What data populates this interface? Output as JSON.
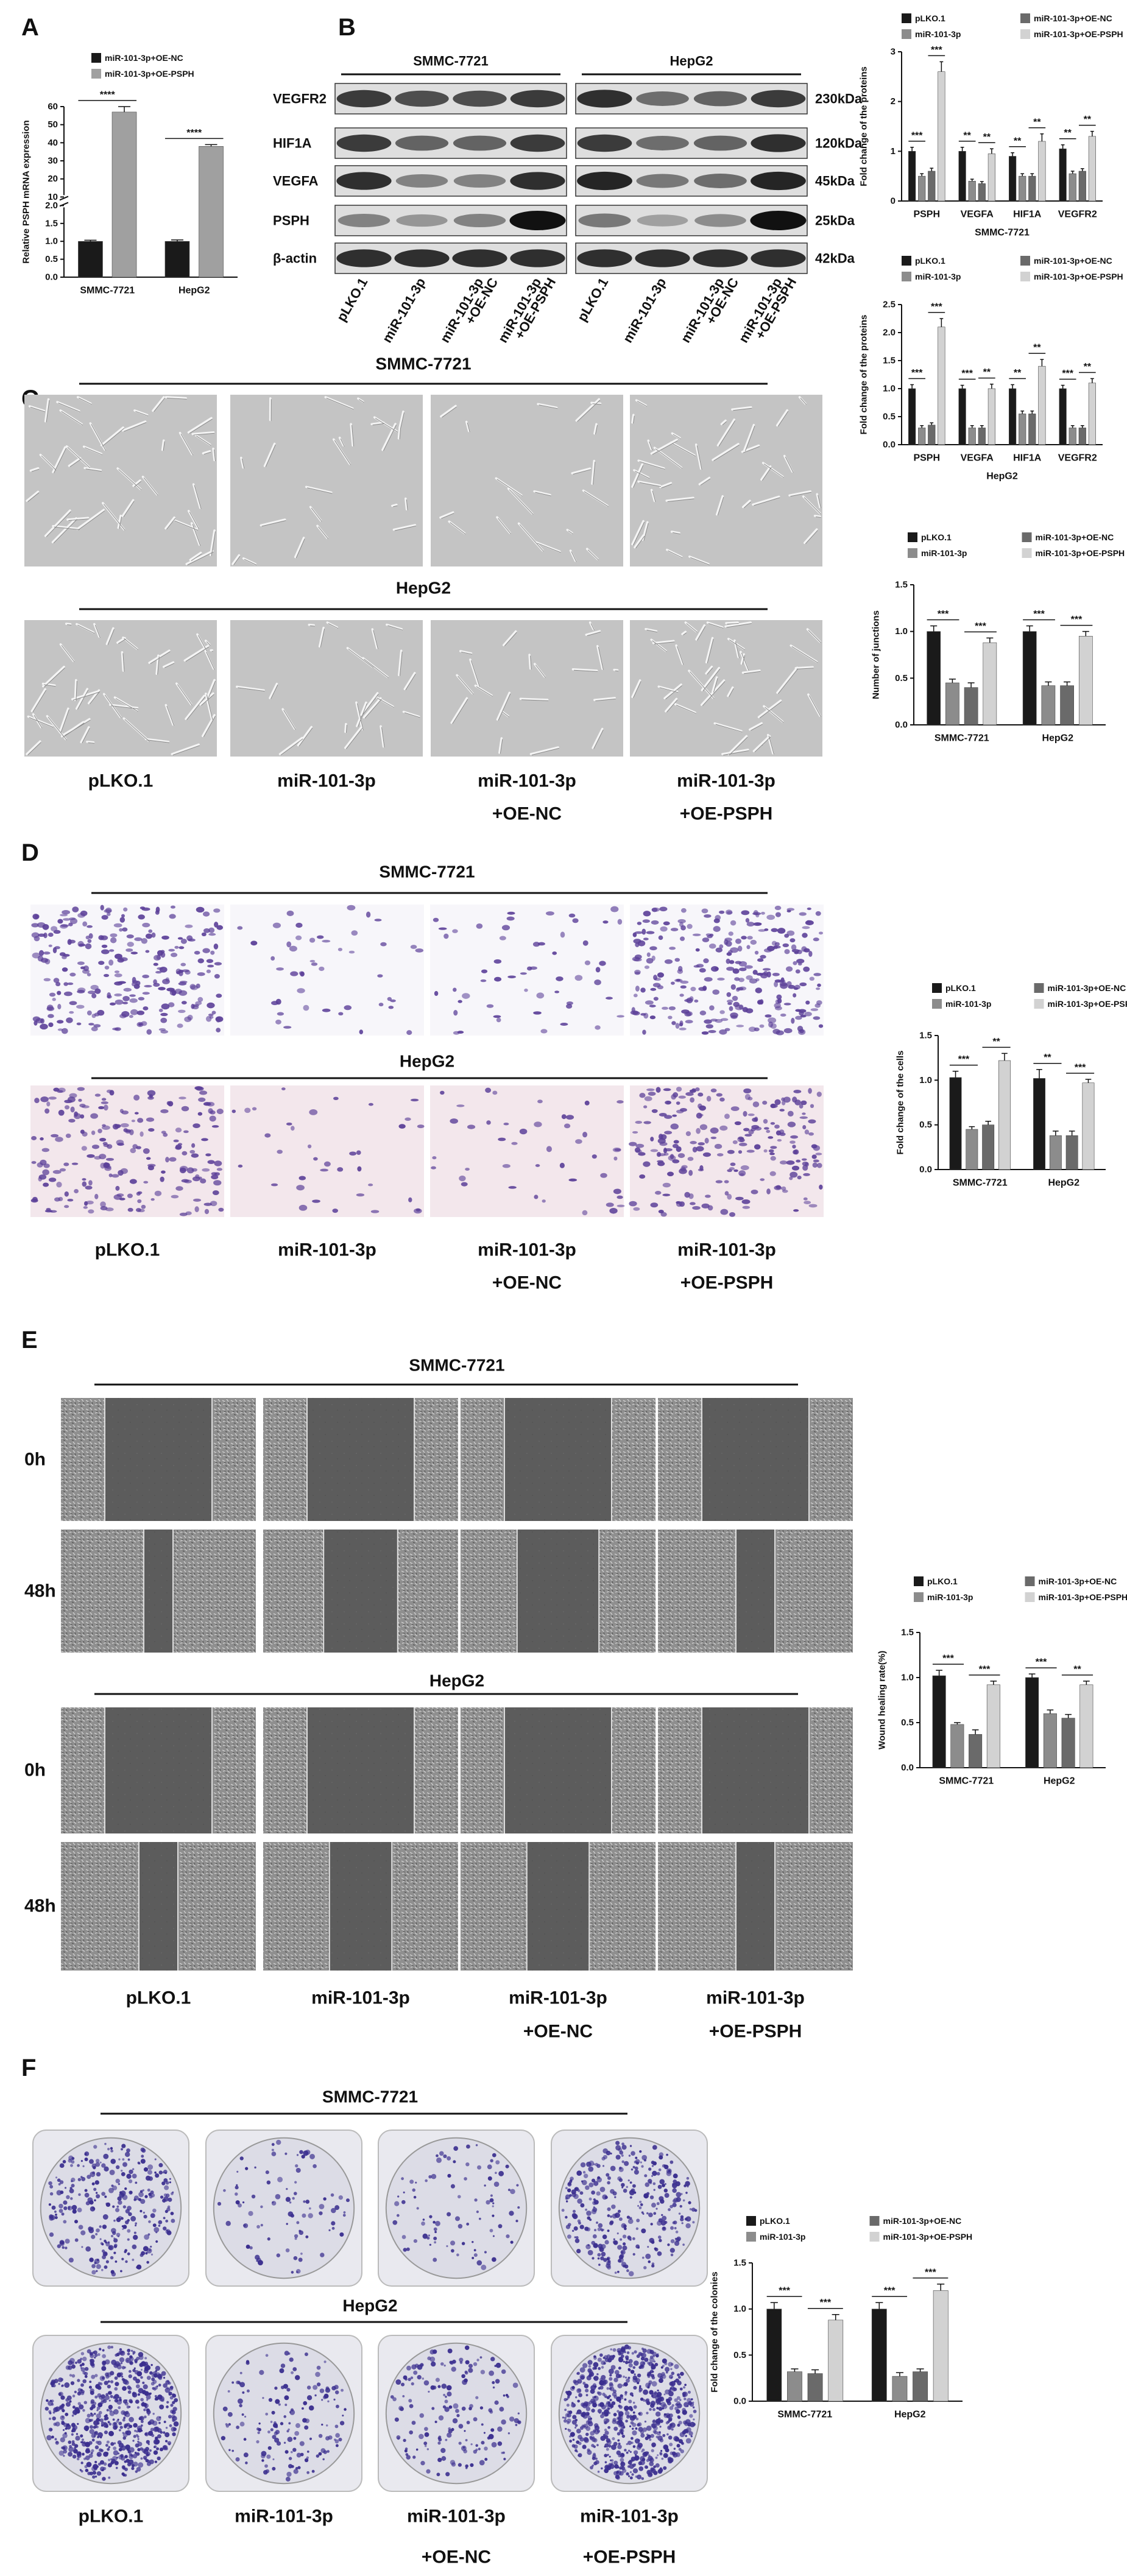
{
  "panels": [
    {
      "label": "A"
    },
    {
      "label": "B",
      "cell_lines": [
        "SMMC-7721",
        "HepG2"
      ],
      "proteins": [
        "VEGFR2",
        "HIF1A",
        "VEGFA",
        "PSPH",
        "β-actin"
      ],
      "sizes": [
        "230kDa",
        "120kDa",
        "45kDa",
        "25kDa",
        "42kDa"
      ],
      "lanes": [
        [
          "pLKO.1"
        ],
        [
          "miR-101-3p"
        ],
        [
          "miR-101-3p",
          "+OE-NC"
        ],
        [
          "miR-101-3p",
          "+OE-PSPH"
        ]
      ]
    },
    {
      "label": "C",
      "top": "SMMC-7721",
      "bottom": "HepG2",
      "conditions": [
        [
          "pLKO.1"
        ],
        [
          "miR-101-3p"
        ],
        [
          "miR-101-3p",
          "+OE-NC"
        ],
        [
          "miR-101-3p",
          "+OE-PSPH"
        ]
      ]
    },
    {
      "label": "D",
      "top": "SMMC-7721",
      "bottom": "HepG2",
      "conditions": [
        [
          "pLKO.1"
        ],
        [
          "miR-101-3p"
        ],
        [
          "miR-101-3p",
          "+OE-NC"
        ],
        [
          "miR-101-3p",
          "+OE-PSPH"
        ]
      ]
    },
    {
      "label": "E",
      "top": "SMMC-7721",
      "bottom": "HepG2",
      "times": [
        "0h",
        "48h"
      ],
      "conditions": [
        [
          "pLKO.1"
        ],
        [
          "miR-101-3p"
        ],
        [
          "miR-101-3p",
          "+OE-NC"
        ],
        [
          "miR-101-3p",
          "+OE-PSPH"
        ]
      ]
    },
    {
      "label": "F",
      "top": "SMMC-7721",
      "bottom": "HepG2",
      "conditions": [
        [
          "pLKO.1"
        ],
        [
          "miR-101-3p"
        ],
        [
          "miR-101-3p",
          "+OE-NC"
        ],
        [
          "miR-101-3p",
          "+OE-PSPH"
        ]
      ]
    }
  ],
  "chart_data": [
    {
      "type": "bar",
      "ylabel": "Relative PSPH mRNA expression",
      "categories": [
        "SMMC-7721",
        "HepG2"
      ],
      "series": [
        {
          "name": "miR-101-3p+OE-NC",
          "color": "#1a1a1a",
          "values": [
            1.0,
            1.0
          ],
          "errors": [
            0.03,
            0.04
          ]
        },
        {
          "name": "miR-101-3p+OE-PSPH",
          "color": "#a0a0a0",
          "values": [
            57,
            38
          ],
          "errors": [
            3,
            1
          ]
        }
      ],
      "ylim": [
        0,
        60
      ],
      "ybreak": [
        2,
        10
      ],
      "yticks": [
        {
          "value": 0,
          "label": "0.0"
        },
        0.5,
        {
          "value": 1,
          "label": "1.0"
        },
        1.5,
        {
          "value": 2,
          "label": "2.0"
        },
        10,
        20,
        30,
        40,
        50,
        60
      ],
      "annotations": [
        {
          "text": "****",
          "category": 0,
          "series": [
            0,
            1
          ]
        },
        {
          "text": "****",
          "category": 1,
          "series": [
            0,
            1
          ]
        }
      ]
    },
    {
      "type": "bar",
      "ylabel": "Fold change of the proteins",
      "xlabel": "SMMC-7721",
      "categories": [
        "PSPH",
        "VEGFA",
        "HIF1A",
        "VEGFR2"
      ],
      "series": [
        {
          "name": "pLKO.1",
          "color": "#1a1a1a",
          "values": [
            1.0,
            1.0,
            0.9,
            1.05
          ],
          "errors": [
            0.08,
            0.08,
            0.07,
            0.08
          ]
        },
        {
          "name": "miR-101-3p",
          "color": "#8c8c8c",
          "values": [
            0.5,
            0.4,
            0.5,
            0.55
          ],
          "errors": [
            0.05,
            0.04,
            0.05,
            0.05
          ]
        },
        {
          "name": "miR-101-3p+OE-NC",
          "color": "#6a6a6a",
          "values": [
            0.6,
            0.35,
            0.5,
            0.6
          ],
          "errors": [
            0.06,
            0.04,
            0.05,
            0.05
          ]
        },
        {
          "name": "miR-101-3p+OE-PSPH",
          "color": "#d2d2d2",
          "values": [
            2.6,
            0.95,
            1.2,
            1.3
          ],
          "errors": [
            0.2,
            0.1,
            0.15,
            0.1
          ]
        }
      ],
      "ylim": [
        0,
        3
      ],
      "yticks": [
        0,
        1,
        2,
        3
      ],
      "annotations": [
        {
          "text": "***",
          "category": 0,
          "series": [
            0,
            1
          ]
        },
        {
          "text": "***",
          "category": 0,
          "series": [
            2,
            3
          ]
        },
        {
          "text": "**",
          "category": 1,
          "series": [
            0,
            1
          ]
        },
        {
          "text": "**",
          "category": 1,
          "series": [
            2,
            3
          ]
        },
        {
          "text": "**",
          "category": 2,
          "series": [
            0,
            1
          ]
        },
        {
          "text": "**",
          "category": 2,
          "series": [
            2,
            3
          ]
        },
        {
          "text": "**",
          "category": 3,
          "series": [
            0,
            1
          ]
        },
        {
          "text": "**",
          "category": 3,
          "series": [
            2,
            3
          ]
        }
      ]
    },
    {
      "type": "bar",
      "ylabel": "Fold change of the proteins",
      "xlabel": "HepG2",
      "categories": [
        "PSPH",
        "VEGFA",
        "HIF1A",
        "VEGFR2"
      ],
      "series": [
        {
          "name": "pLKO.1",
          "color": "#1a1a1a",
          "values": [
            1.0,
            1.0,
            1.0,
            1.0
          ],
          "errors": [
            0.07,
            0.06,
            0.07,
            0.06
          ]
        },
        {
          "name": "miR-101-3p",
          "color": "#8c8c8c",
          "values": [
            0.3,
            0.3,
            0.55,
            0.3
          ],
          "errors": [
            0.04,
            0.04,
            0.05,
            0.04
          ]
        },
        {
          "name": "miR-101-3p+OE-NC",
          "color": "#6a6a6a",
          "values": [
            0.35,
            0.3,
            0.55,
            0.3
          ],
          "errors": [
            0.04,
            0.04,
            0.05,
            0.04
          ]
        },
        {
          "name": "miR-101-3p+OE-PSPH",
          "color": "#d2d2d2",
          "values": [
            2.1,
            1.0,
            1.4,
            1.1
          ],
          "errors": [
            0.15,
            0.08,
            0.12,
            0.08
          ]
        }
      ],
      "ylim": [
        0,
        2.5
      ],
      "yticks": [
        {
          "value": 0,
          "label": "0.0"
        },
        0.5,
        {
          "value": 1,
          "label": "1.0"
        },
        1.5,
        {
          "value": 2,
          "label": "2.0"
        },
        2.5
      ],
      "annotations": [
        {
          "text": "***",
          "category": 0,
          "series": [
            0,
            1
          ]
        },
        {
          "text": "***",
          "category": 0,
          "series": [
            2,
            3
          ]
        },
        {
          "text": "***",
          "category": 1,
          "series": [
            0,
            1
          ]
        },
        {
          "text": "**",
          "category": 1,
          "series": [
            2,
            3
          ]
        },
        {
          "text": "**",
          "category": 2,
          "series": [
            0,
            1
          ]
        },
        {
          "text": "**",
          "category": 2,
          "series": [
            2,
            3
          ]
        },
        {
          "text": "***",
          "category": 3,
          "series": [
            0,
            1
          ]
        },
        {
          "text": "**",
          "category": 3,
          "series": [
            2,
            3
          ]
        }
      ]
    },
    {
      "type": "bar",
      "ylabel": "Number of junctions",
      "categories": [
        "SMMC-7721",
        "HepG2"
      ],
      "series": [
        {
          "name": "pLKO.1",
          "color": "#1a1a1a",
          "values": [
            1.0,
            1.0
          ],
          "errors": [
            0.06,
            0.06
          ]
        },
        {
          "name": "miR-101-3p",
          "color": "#8c8c8c",
          "values": [
            0.45,
            0.42
          ],
          "errors": [
            0.04,
            0.04
          ]
        },
        {
          "name": "miR-101-3p+OE-NC",
          "color": "#6a6a6a",
          "values": [
            0.4,
            0.42
          ],
          "errors": [
            0.05,
            0.04
          ]
        },
        {
          "name": "miR-101-3p+OE-PSPH",
          "color": "#d2d2d2",
          "values": [
            0.88,
            0.95
          ],
          "errors": [
            0.05,
            0.05
          ]
        }
      ],
      "ylim": [
        0,
        1.5
      ],
      "yticks": [
        {
          "value": 0,
          "label": "0.0"
        },
        0.5,
        {
          "value": 1,
          "label": "1.0"
        },
        1.5
      ],
      "annotations": [
        {
          "text": "***",
          "category": 0,
          "series": [
            0,
            1
          ]
        },
        {
          "text": "***",
          "category": 0,
          "series": [
            2,
            3
          ]
        },
        {
          "text": "***",
          "category": 1,
          "series": [
            0,
            1
          ]
        },
        {
          "text": "***",
          "category": 1,
          "series": [
            2,
            3
          ]
        }
      ]
    },
    {
      "type": "bar",
      "ylabel": "Fold change of the cells",
      "categories": [
        "SMMC-7721",
        "HepG2"
      ],
      "series": [
        {
          "name": "pLKO.1",
          "color": "#1a1a1a",
          "values": [
            1.03,
            1.02
          ],
          "errors": [
            0.07,
            0.1
          ]
        },
        {
          "name": "miR-101-3p",
          "color": "#8c8c8c",
          "values": [
            0.45,
            0.38
          ],
          "errors": [
            0.03,
            0.05
          ]
        },
        {
          "name": "miR-101-3p+OE-NC",
          "color": "#6a6a6a",
          "values": [
            0.5,
            0.38
          ],
          "errors": [
            0.04,
            0.05
          ]
        },
        {
          "name": "miR-101-3p+OE-PSPH",
          "color": "#d2d2d2",
          "values": [
            1.22,
            0.97
          ],
          "errors": [
            0.08,
            0.04
          ]
        }
      ],
      "ylim": [
        0,
        1.5
      ],
      "yticks": [
        {
          "value": 0,
          "label": "0.0"
        },
        0.5,
        {
          "value": 1,
          "label": "1.0"
        },
        1.5
      ],
      "annotations": [
        {
          "text": "***",
          "category": 0,
          "series": [
            0,
            1
          ]
        },
        {
          "text": "**",
          "category": 0,
          "series": [
            2,
            3
          ]
        },
        {
          "text": "**",
          "category": 1,
          "series": [
            0,
            1
          ]
        },
        {
          "text": "***",
          "category": 1,
          "series": [
            2,
            3
          ]
        }
      ]
    },
    {
      "type": "bar",
      "ylabel": "Wound healing rate(%)",
      "categories": [
        "SMMC-7721",
        "HepG2"
      ],
      "series": [
        {
          "name": "pLKO.1",
          "color": "#1a1a1a",
          "values": [
            1.02,
            1.0
          ],
          "errors": [
            0.06,
            0.04
          ]
        },
        {
          "name": "miR-101-3p",
          "color": "#8c8c8c",
          "values": [
            0.48,
            0.6
          ],
          "errors": [
            0.02,
            0.04
          ]
        },
        {
          "name": "miR-101-3p+OE-NC",
          "color": "#6a6a6a",
          "values": [
            0.37,
            0.55
          ],
          "errors": [
            0.05,
            0.04
          ]
        },
        {
          "name": "miR-101-3p+OE-PSPH",
          "color": "#d2d2d2",
          "values": [
            0.92,
            0.92
          ],
          "errors": [
            0.04,
            0.04
          ]
        }
      ],
      "ylim": [
        0,
        1.5
      ],
      "yticks": [
        {
          "value": 0,
          "label": "0.0"
        },
        0.5,
        {
          "value": 1,
          "label": "1.0"
        },
        1.5
      ],
      "annotations": [
        {
          "text": "***",
          "category": 0,
          "series": [
            0,
            1
          ]
        },
        {
          "text": "***",
          "category": 0,
          "series": [
            2,
            3
          ]
        },
        {
          "text": "***",
          "category": 1,
          "series": [
            0,
            1
          ]
        },
        {
          "text": "**",
          "category": 1,
          "series": [
            2,
            3
          ]
        }
      ]
    },
    {
      "type": "bar",
      "ylabel": "Fold change of the colonies",
      "categories": [
        "SMMC-7721",
        "HepG2"
      ],
      "series": [
        {
          "name": "pLKO.1",
          "color": "#1a1a1a",
          "values": [
            1.0,
            1.0
          ],
          "errors": [
            0.07,
            0.07
          ]
        },
        {
          "name": "miR-101-3p",
          "color": "#8c8c8c",
          "values": [
            0.32,
            0.27
          ],
          "errors": [
            0.03,
            0.04
          ]
        },
        {
          "name": "miR-101-3p+OE-NC",
          "color": "#6a6a6a",
          "values": [
            0.3,
            0.32
          ],
          "errors": [
            0.04,
            0.03
          ]
        },
        {
          "name": "miR-101-3p+OE-PSPH",
          "color": "#d2d2d2",
          "values": [
            0.88,
            1.2
          ],
          "errors": [
            0.06,
            0.07
          ]
        }
      ],
      "ylim": [
        0,
        1.5
      ],
      "yticks": [
        {
          "value": 0,
          "label": "0.0"
        },
        0.5,
        {
          "value": 1,
          "label": "1.0"
        },
        1.5
      ],
      "annotations": [
        {
          "text": "***",
          "category": 0,
          "series": [
            0,
            1
          ]
        },
        {
          "text": "***",
          "category": 0,
          "series": [
            2,
            3
          ]
        },
        {
          "text": "***",
          "category": 1,
          "series": [
            0,
            1
          ]
        },
        {
          "text": "***",
          "category": 1,
          "series": [
            2,
            3
          ]
        }
      ]
    }
  ]
}
